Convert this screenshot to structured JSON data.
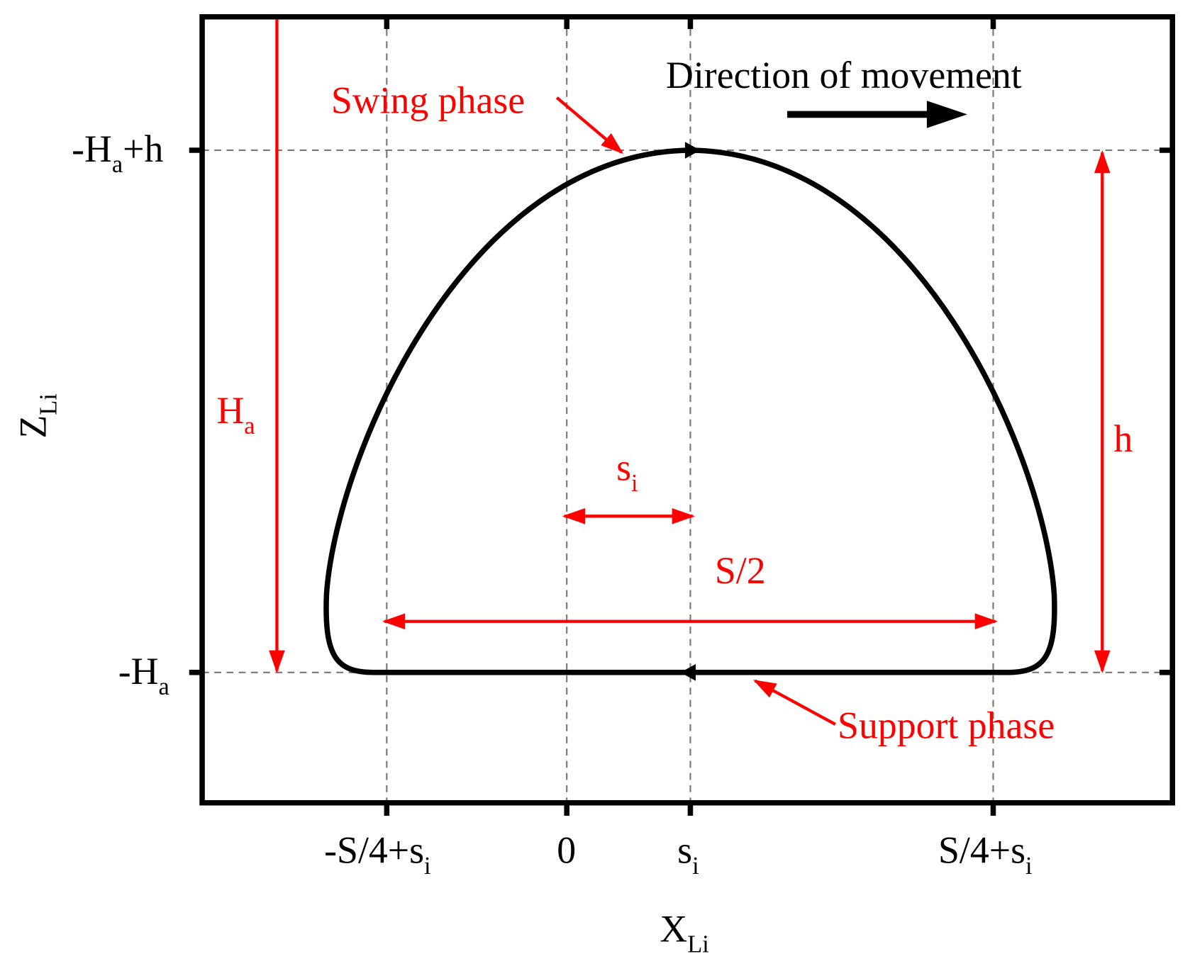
{
  "axes": {
    "x_label": {
      "text": "X",
      "sub": "Li"
    },
    "y_label": {
      "text": "Z",
      "sub": "Li"
    }
  },
  "x_ticks": [
    {
      "text": "-S/4+s",
      "sub": "i"
    },
    {
      "text": "0"
    },
    {
      "text": "s",
      "sub": "i"
    },
    {
      "text": "S/4+s",
      "sub": "i"
    }
  ],
  "y_ticks": [
    {
      "text": "-H",
      "sub": "a",
      "tail": "+h"
    },
    {
      "text": "-H",
      "sub": "a"
    }
  ],
  "annotations": {
    "direction": "Direction of movement",
    "swing": "Swing phase",
    "support": "Support phase",
    "Ha": {
      "text": "H",
      "sub": "a"
    },
    "h": "h",
    "si": {
      "text": "s",
      "sub": "i"
    },
    "half_stride": "S/2"
  }
}
